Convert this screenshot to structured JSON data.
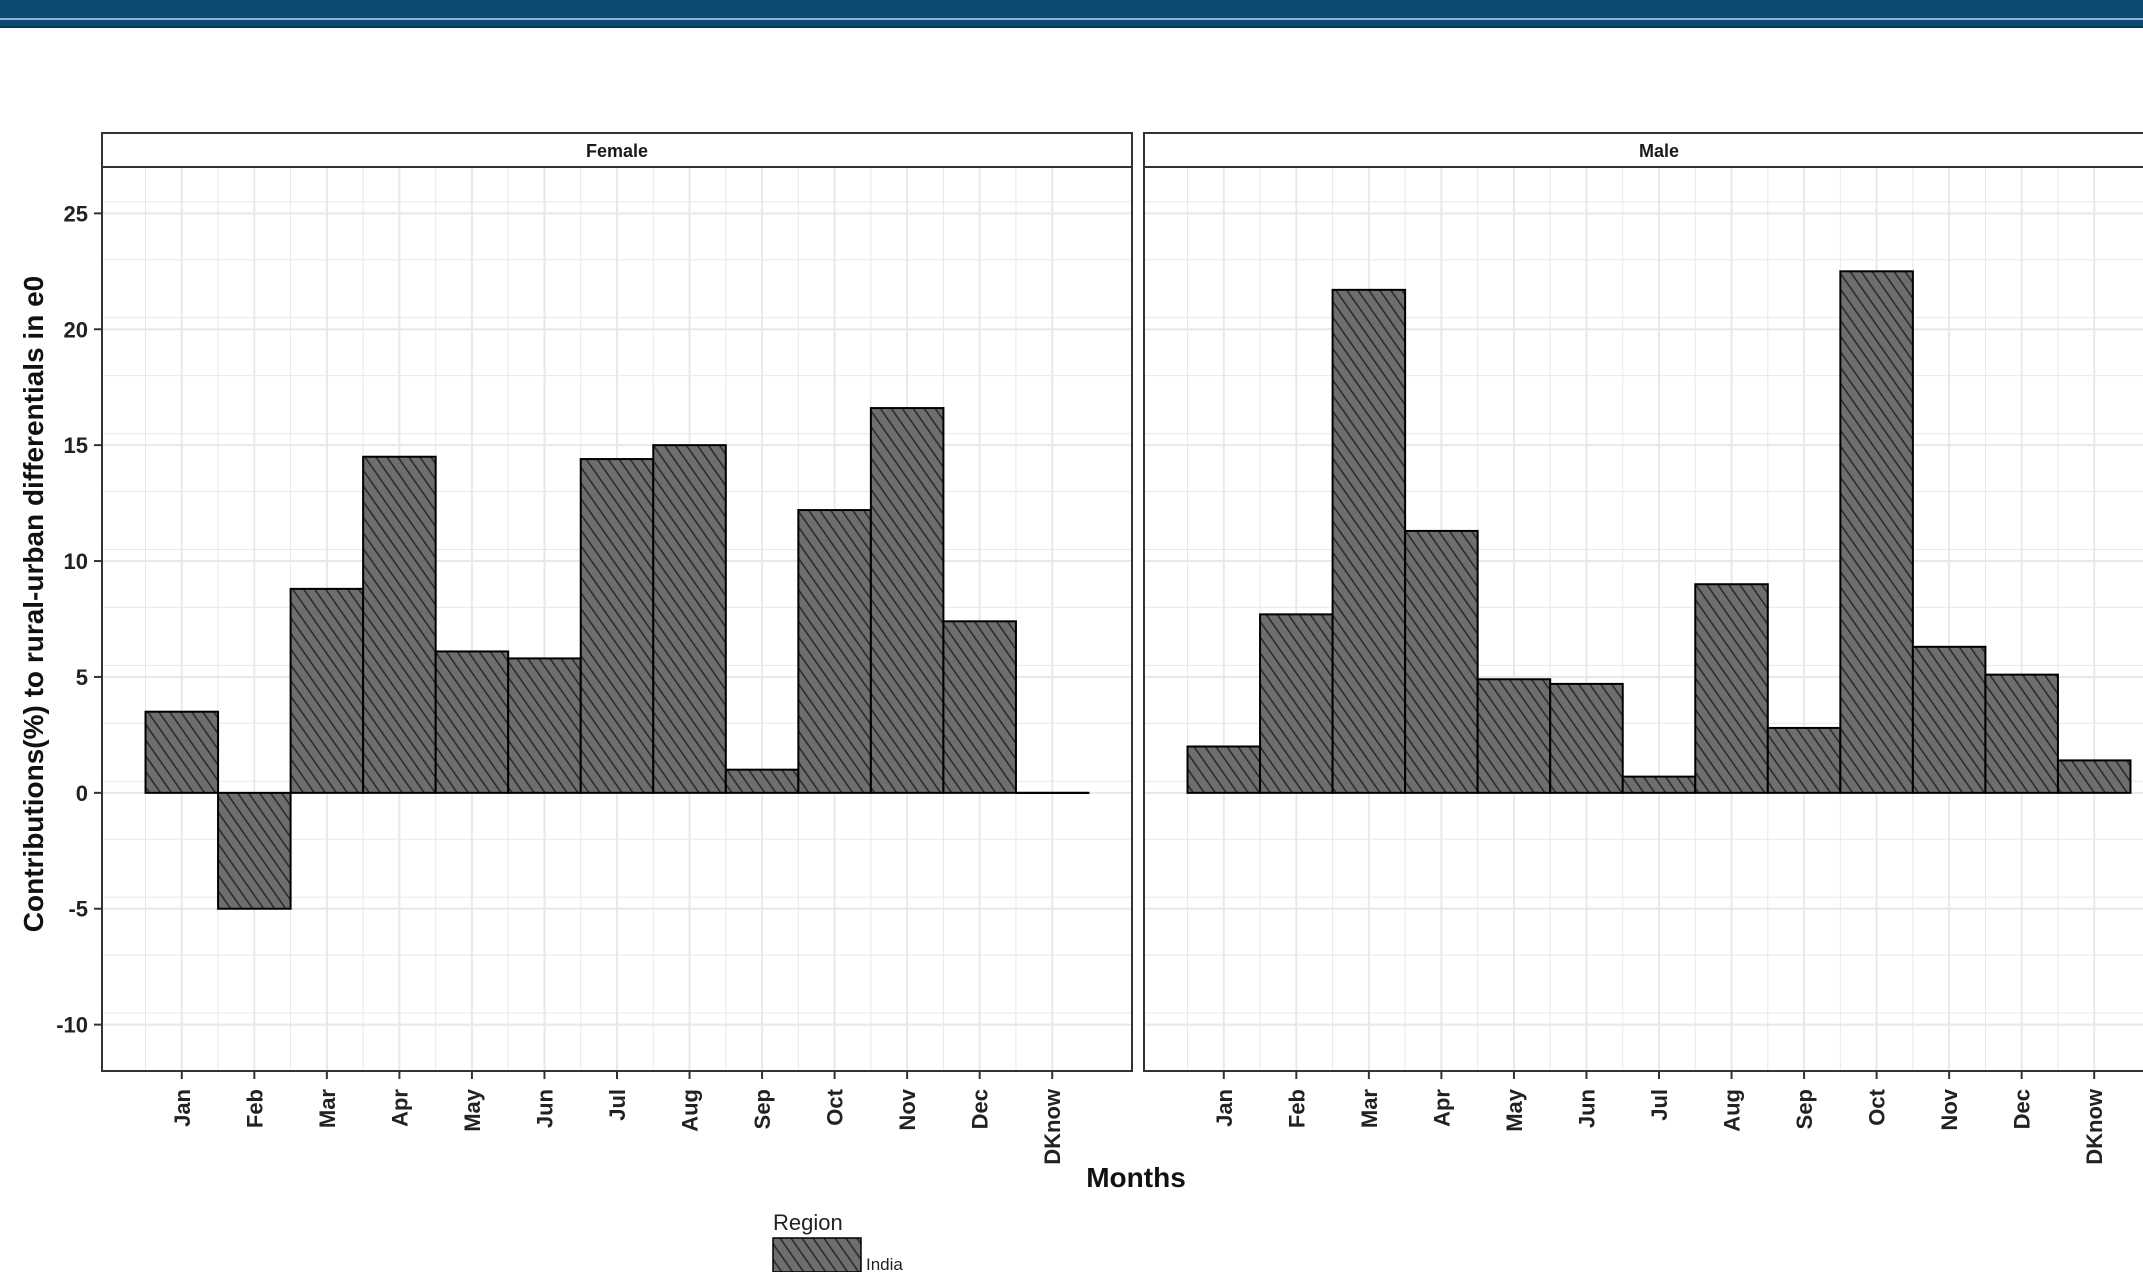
{
  "chart_data": {
    "type": "bar",
    "ylabel": "Contributions(%) to rural-urban differentials in e0",
    "xlabel": "Months",
    "ylim": [
      -12,
      27
    ],
    "y_ticks": [
      -10,
      -5,
      0,
      5,
      10,
      15,
      20,
      25
    ],
    "grid": true,
    "categories": [
      "Jan",
      "Feb",
      "Mar",
      "Apr",
      "May",
      "Jun",
      "Jul",
      "Aug",
      "Sep",
      "Oct",
      "Nov",
      "Dec",
      "DKnow"
    ],
    "panels": [
      {
        "strip": "Female",
        "series": [
          {
            "name": "India",
            "values": [
              3.5,
              -5.0,
              8.8,
              14.5,
              6.1,
              5.8,
              14.4,
              15.0,
              1.0,
              12.2,
              16.6,
              7.4,
              0.0
            ]
          }
        ]
      },
      {
        "strip": "Male",
        "series": [
          {
            "name": "India",
            "values": [
              2.0,
              7.7,
              21.7,
              11.3,
              4.9,
              4.7,
              0.7,
              9.0,
              2.8,
              22.5,
              6.3,
              5.1,
              1.4
            ]
          }
        ]
      }
    ],
    "legend": {
      "title": "Region",
      "entries": [
        "India"
      ],
      "position": "bottom"
    },
    "colors": {
      "bar_fill": "#6e6e6e",
      "hatch": "#2b2b2b",
      "bar_edge": "#000000",
      "grid": "#e8e8e8",
      "strip_bg": "#ffffff",
      "top_band": "#0e4b72"
    }
  }
}
